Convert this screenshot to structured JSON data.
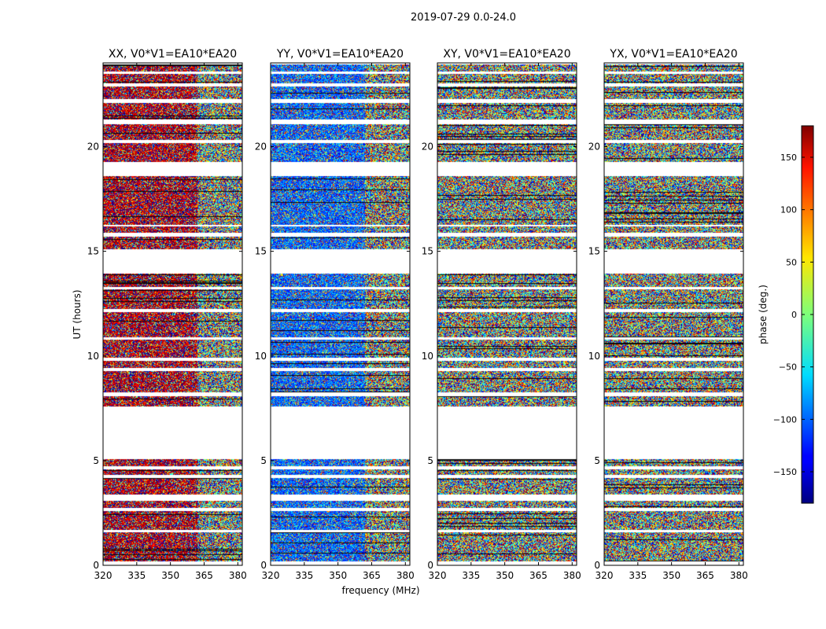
{
  "figure": {
    "suptitle": "2019-07-29 0.0-24.0",
    "xlabel": "frequency (MHz)",
    "ylabel": "UT (hours)"
  },
  "chart_data": {
    "type": "heatmap",
    "description_note": "four waterfall phase plots (frequency vs UT) sharing a phase colorbar",
    "panels": [
      {
        "name": "XX",
        "title": "XX, V0*V1=EA10*EA20",
        "coherent_phase_deg": 160
      },
      {
        "name": "YY",
        "title": "YY, V0*V1=EA10*EA20",
        "coherent_phase_deg": -100
      },
      {
        "name": "XY",
        "title": "XY, V0*V1=EA10*EA20",
        "coherent_phase_deg": null
      },
      {
        "name": "YX",
        "title": "YX, V0*V1=EA10*EA20",
        "coherent_phase_deg": null
      }
    ],
    "xlim": [
      320,
      382
    ],
    "xticks": [
      320,
      335,
      350,
      365,
      380
    ],
    "ylim": [
      0,
      24
    ],
    "yticks": [
      0,
      5,
      10,
      15,
      20
    ],
    "coherent_freq_range_mhz": [
      320,
      362
    ],
    "data_blocks_ut_hours": [
      [
        0.2,
        1.6
      ],
      [
        1.7,
        2.6
      ],
      [
        2.75,
        3.1
      ],
      [
        3.4,
        4.2
      ],
      [
        4.35,
        4.6
      ],
      [
        4.75,
        5.1
      ],
      [
        7.6,
        8.1
      ],
      [
        8.3,
        9.3
      ],
      [
        9.45,
        9.8
      ],
      [
        9.95,
        10.8
      ],
      [
        10.9,
        12.1
      ],
      [
        12.25,
        13.2
      ],
      [
        13.3,
        13.95
      ],
      [
        15.1,
        15.7
      ],
      [
        15.9,
        16.2
      ],
      [
        16.3,
        18.6
      ],
      [
        19.3,
        20.2
      ],
      [
        20.35,
        21.1
      ],
      [
        21.3,
        22.1
      ],
      [
        22.3,
        22.9
      ],
      [
        23.05,
        23.5
      ],
      [
        23.6,
        23.95
      ]
    ],
    "colorbar": {
      "label": "phase (deg.)",
      "range": [
        -180,
        180
      ],
      "ticks": [
        150,
        100,
        50,
        0,
        -50,
        -100,
        -150
      ],
      "colormap": "jet"
    }
  }
}
